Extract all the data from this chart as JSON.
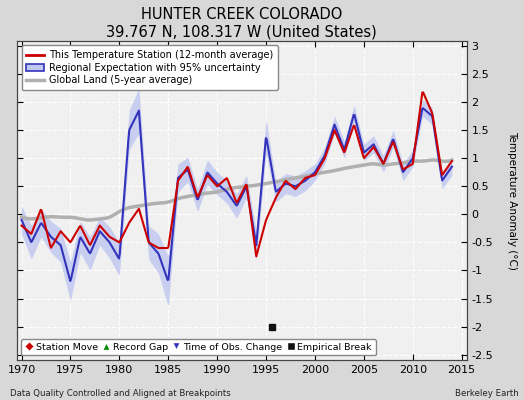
{
  "title": "HUNTER CREEK COLORADO",
  "subtitle": "39.767 N, 108.317 W (United States)",
  "ylabel": "Temperature Anomaly (°C)",
  "ylim": [
    -2.6,
    3.1
  ],
  "yticks": [
    -2.5,
    -2,
    -1.5,
    -1,
    -0.5,
    0,
    0.5,
    1,
    1.5,
    2,
    2.5,
    3
  ],
  "xticks": [
    1970,
    1975,
    1980,
    1985,
    1990,
    1995,
    2000,
    2005,
    2010,
    2015
  ],
  "xlim": [
    1969.5,
    2015.5
  ],
  "station_color": "#cc0000",
  "regional_color": "#3333bb",
  "regional_fill_color": "#c0c8f0",
  "global_color": "#b0b0b0",
  "plot_bg_color": "#f0f0f0",
  "outer_bg_color": "#d8d8d8",
  "legend_entries": [
    "This Temperature Station (12-month average)",
    "Regional Expectation with 95% uncertainty",
    "Global Land (5-year average)"
  ],
  "bottom_left_text": "Data Quality Controlled and Aligned at Breakpoints",
  "bottom_right_text": "Berkeley Earth",
  "empirical_break_year": 1995.6,
  "empirical_break_value": -2.0,
  "marker_legend": [
    {
      "marker": "D",
      "color": "#cc0000",
      "label": "Station Move"
    },
    {
      "marker": "^",
      "color": "#008800",
      "label": "Record Gap"
    },
    {
      "marker": "v",
      "color": "#3333bb",
      "label": "Time of Obs. Change"
    },
    {
      "marker": "s",
      "color": "#111111",
      "label": "Empirical Break"
    }
  ]
}
